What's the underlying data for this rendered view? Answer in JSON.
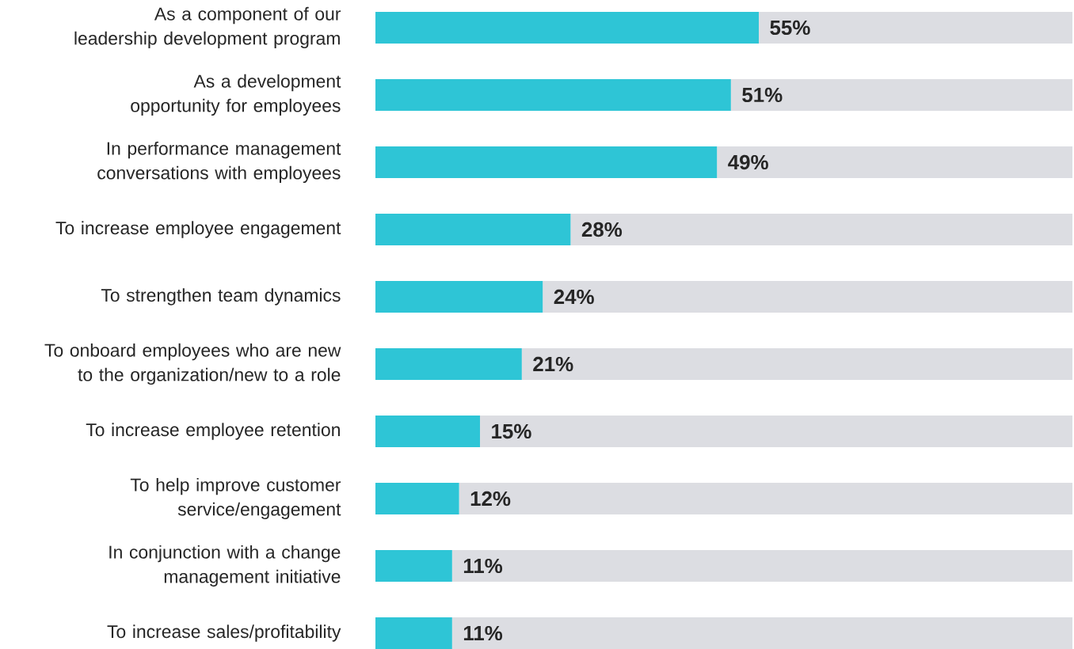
{
  "chart_data": {
    "type": "bar",
    "orientation": "horizontal",
    "stacked": true,
    "categories": [
      "As a component of our leadership development program",
      "As a development opportunity for employees",
      "In performance management conversations with employees",
      "To increase employee engagement",
      "To strengthen team dynamics",
      "To onboard employees who are new to the organization/new to a role",
      "To increase employee retention",
      "To help improve customer service/engagement",
      "In conjunction with a change management initiative",
      "To increase sales/profitability"
    ],
    "series": [
      {
        "color": "#2ec5d6",
        "values": [
          55,
          51,
          49,
          28,
          24,
          21,
          15,
          12,
          11,
          11
        ],
        "value_labels": [
          "55%",
          "51%",
          "49%",
          "28%",
          "24%",
          "21%",
          "15%",
          "12%",
          "11%",
          "11%"
        ]
      },
      {
        "color": "#dcdde2",
        "values": [
          45,
          49,
          51,
          72,
          76,
          79,
          85,
          88,
          89,
          89
        ]
      }
    ],
    "xlim": [
      0,
      100
    ]
  }
}
